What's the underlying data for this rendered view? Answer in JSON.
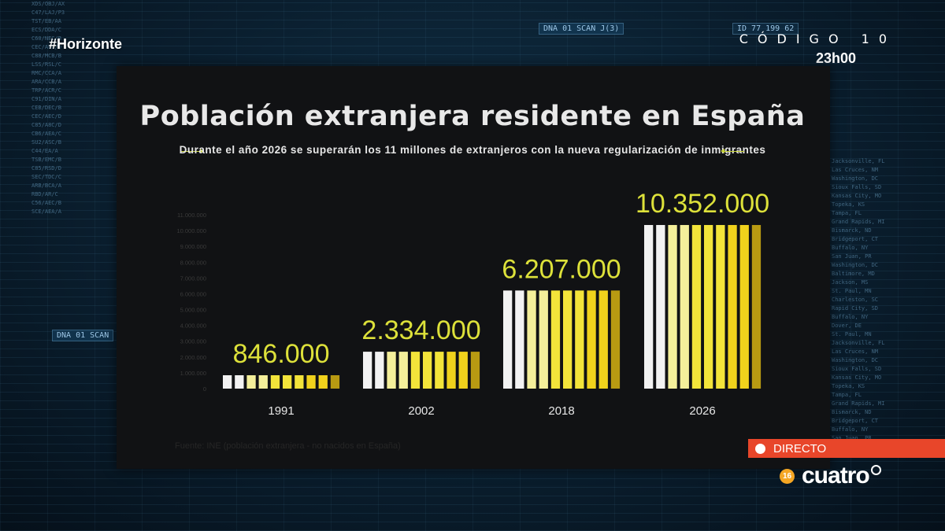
{
  "overlay": {
    "hashtag": "#Horizonte",
    "show_title": "CÓDIGO 10",
    "show_time": "23h00",
    "live_label": "DIRECTO",
    "channel_name": "cuatro",
    "channel_badge": "16",
    "scan_tags": [
      "DNA 01 SCAN J(3)",
      "DNA 01 SCAN"
    ],
    "id_tag": "ID 77 199 62"
  },
  "colors": {
    "accent_yellow": "#dde13a",
    "bar_yellow": "#f0d21c",
    "bar_dark_yellow": "#b89a12",
    "bar_white": "#f2f2f2",
    "live_red": "#e8462a",
    "panel": "#111214"
  },
  "chart_data": {
    "type": "bar",
    "title": "Población extranjera residente en España",
    "subtitle": "Durante el año 2026 se superarán los 11 millones de extranjeros con la nueva regularización de inmigrantes",
    "categories": [
      "1991",
      "2002",
      "2018",
      "2026"
    ],
    "values": [
      846000,
      2334000,
      6207000,
      10352000
    ],
    "data_labels": [
      "846.000",
      "2.334.000",
      "6.207.000",
      "10.352.000"
    ],
    "ylim": [
      0,
      11000000
    ],
    "y_ticks": [
      "0",
      "1.000.000",
      "2.000.000",
      "3.000.000",
      "4.000.000",
      "5.000.000",
      "6.000.000",
      "7.000.000",
      "8.000.000",
      "9.000.000",
      "10.000.000",
      "11.000.000"
    ],
    "source": "Fuente: INE (población extranjera - no nacidos en España)",
    "grid": false,
    "legend": "none"
  }
}
